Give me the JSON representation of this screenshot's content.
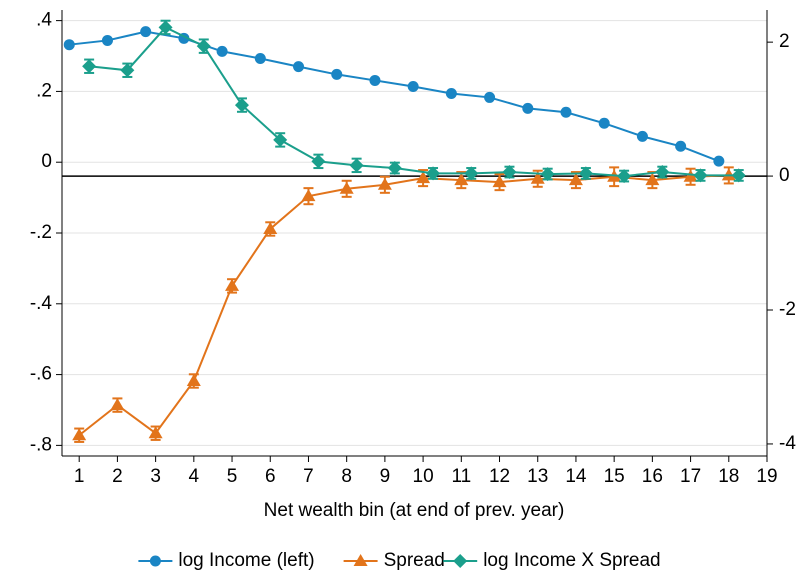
{
  "chart_data": {
    "type": "line",
    "x_label": "Net wealth bin (at end of prev. year)",
    "xlim": [
      0.55,
      19
    ],
    "xticks": [
      1,
      2,
      3,
      4,
      5,
      6,
      7,
      8,
      9,
      10,
      11,
      12,
      13,
      14,
      15,
      16,
      17,
      18,
      19
    ],
    "ylim": [
      -0.83,
      0.43
    ],
    "yticks": [
      {
        "value": 0.4,
        "label": ".4"
      },
      {
        "value": 0.2,
        "label": ".2"
      },
      0,
      {
        "value": -0.2,
        "label": "-.2"
      },
      {
        "value": -0.4,
        "label": "-.4"
      },
      {
        "value": -0.6,
        "label": "-.6"
      },
      {
        "value": -0.8,
        "label": "-.8"
      }
    ],
    "y2lim": [
      -4.18,
      2.48
    ],
    "y2ticks": [
      2,
      0,
      -2,
      -4
    ],
    "y2_reference_line": 0,
    "grid": true,
    "legend": "bottom",
    "series": [
      {
        "name": "log Income (left)",
        "color": "#1a85c4",
        "marker": "circle",
        "axis": "y",
        "x": [
          0.74,
          1.74,
          2.74,
          3.74,
          4.74,
          5.74,
          6.74,
          7.74,
          8.74,
          9.74,
          10.74,
          11.74,
          12.74,
          13.74,
          14.74,
          15.74,
          16.74,
          17.74
        ],
        "values": [
          0.332,
          0.344,
          0.369,
          0.35,
          0.313,
          0.293,
          0.27,
          0.248,
          0.231,
          0.214,
          0.194,
          0.183,
          0.152,
          0.141,
          0.11,
          0.073,
          0.045,
          0.003
        ]
      },
      {
        "name": "Spread",
        "color": "#e2741b",
        "marker": "triangle",
        "axis": "y2",
        "x": [
          1,
          2,
          3,
          4,
          5,
          6,
          7,
          8,
          9,
          10,
          11,
          12,
          13,
          14,
          15,
          16,
          17,
          18
        ],
        "values": [
          -3.87,
          -3.42,
          -3.84,
          -3.06,
          -1.64,
          -0.79,
          -0.3,
          -0.19,
          -0.13,
          -0.03,
          -0.06,
          -0.09,
          -0.04,
          -0.06,
          -0.01,
          -0.06,
          -0.01,
          0.01
        ],
        "errors": [
          0.1,
          0.1,
          0.1,
          0.1,
          0.1,
          0.1,
          0.12,
          0.12,
          0.12,
          0.12,
          0.12,
          0.12,
          0.12,
          0.12,
          0.14,
          0.12,
          0.12,
          0.12
        ]
      },
      {
        "name": "log Income X Spread",
        "color": "#1b9f8c",
        "marker": "diamond",
        "axis": "y2",
        "x": [
          1.26,
          2.26,
          3.26,
          4.26,
          5.26,
          6.26,
          7.26,
          8.26,
          9.26,
          10.26,
          11.26,
          12.26,
          13.26,
          14.26,
          15.26,
          16.26,
          17.26,
          18.26
        ],
        "values": [
          1.64,
          1.58,
          2.22,
          1.94,
          1.06,
          0.54,
          0.22,
          0.16,
          0.12,
          0.04,
          0.04,
          0.06,
          0.03,
          0.04,
          0.0,
          0.06,
          0.01,
          0.01
        ],
        "errors": [
          0.1,
          0.1,
          0.1,
          0.1,
          0.1,
          0.1,
          0.1,
          0.1,
          0.08,
          0.08,
          0.08,
          0.08,
          0.08,
          0.08,
          0.08,
          0.08,
          0.08,
          0.08
        ]
      }
    ]
  }
}
